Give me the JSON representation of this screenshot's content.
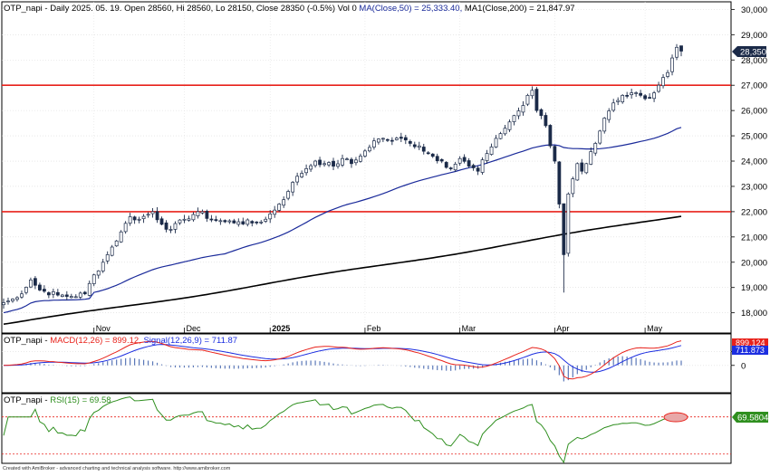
{
  "price_header": {
    "prefix": "OTP_napi - Daily 2025. 05. 19. Open 28560, Hi 28560, Lo 28150, Close 28350 (-0.5%) Vol 0 ",
    "ma50": "MA(Close,50) = 25,333.40, ",
    "ma200": "MA1(Close,200) = 21,847.97",
    "ma50_color": "#1a2a9a",
    "ma200_color": "#000000"
  },
  "macd_header": {
    "prefix": "OTP_napi - ",
    "macd": "MACD(12,26) = 899.12, ",
    "signal": "Signal(12,26,9) = 711.87",
    "macd_color": "#e8221b",
    "signal_color": "#1c2ee0"
  },
  "rsi_header": {
    "prefix": "OTP_napi - ",
    "rsi": "RSI(15) = 69.58",
    "rsi_color": "#2f8f1f"
  },
  "price_badge": "28,350",
  "macd_badge": "899.124",
  "signal_badge": "711.873",
  "rsi_badge": "69.5804",
  "footer": "Created with AmiBroker - advanced charting and technical analysis software. http://www.amibroker.com",
  "chart_data": [
    {
      "type": "candlestick",
      "ticker": "OTP_napi",
      "y_ticks": [
        18000,
        19000,
        20000,
        21000,
        22000,
        23000,
        24000,
        25000,
        26000,
        27000,
        28000,
        29000,
        30000
      ],
      "ylim": [
        17200,
        30300
      ],
      "x_labels": [
        "Nov",
        "Dec",
        "2025",
        "Feb",
        "Mar",
        "Apr",
        "May"
      ],
      "x_label_positions": [
        20,
        40,
        59,
        80,
        101,
        122,
        142
      ],
      "num_bars": 151,
      "horizontal_lines": [
        {
          "value": 27000,
          "color": "#e8221b"
        },
        {
          "value": 22000,
          "color": "#e8221b"
        }
      ],
      "up_color": "#ffffff",
      "down_color": "#1b2a48",
      "ohlc_keypoints": [
        [
          0,
          18400
        ],
        [
          3,
          18600
        ],
        [
          6,
          19300
        ],
        [
          8,
          18900
        ],
        [
          12,
          18700
        ],
        [
          15,
          18650
        ],
        [
          18,
          18750
        ],
        [
          20,
          19500
        ],
        [
          22,
          20000
        ],
        [
          24,
          20600
        ],
        [
          26,
          21200
        ],
        [
          28,
          21800
        ],
        [
          30,
          21700
        ],
        [
          33,
          22000
        ],
        [
          35,
          21500
        ],
        [
          37,
          21300
        ],
        [
          40,
          21700
        ],
        [
          43,
          22000
        ],
        [
          46,
          21700
        ],
        [
          49,
          21600
        ],
        [
          52,
          21600
        ],
        [
          55,
          21550
        ],
        [
          58,
          21700
        ],
        [
          61,
          22300
        ],
        [
          63,
          22800
        ],
        [
          65,
          23400
        ],
        [
          67,
          23700
        ],
        [
          69,
          24000
        ],
        [
          71,
          23900
        ],
        [
          73,
          23800
        ],
        [
          75,
          24100
        ],
        [
          77,
          23900
        ],
        [
          79,
          24200
        ],
        [
          80,
          24400
        ],
        [
          82,
          24800
        ],
        [
          84,
          24900
        ],
        [
          86,
          24800
        ],
        [
          88,
          24900
        ],
        [
          90,
          24700
        ],
        [
          92,
          24600
        ],
        [
          94,
          24300
        ],
        [
          97,
          24000
        ],
        [
          99,
          23700
        ],
        [
          101,
          24100
        ],
        [
          103,
          23800
        ],
        [
          105,
          23600
        ],
        [
          107,
          24300
        ],
        [
          109,
          24900
        ],
        [
          111,
          25300
        ],
        [
          113,
          25800
        ],
        [
          115,
          26200
        ],
        [
          116,
          26600
        ],
        [
          117,
          26800
        ],
        [
          118,
          26000
        ],
        [
          119,
          25800
        ],
        [
          120,
          25400
        ],
        [
          121,
          24600
        ],
        [
          122,
          24000
        ],
        [
          123,
          22300
        ],
        [
          124,
          20300
        ],
        [
          125,
          22700
        ],
        [
          126,
          23300
        ],
        [
          127,
          23900
        ],
        [
          128,
          23600
        ],
        [
          129,
          23900
        ],
        [
          131,
          24700
        ],
        [
          133,
          25700
        ],
        [
          135,
          26300
        ],
        [
          137,
          26600
        ],
        [
          139,
          26700
        ],
        [
          141,
          26600
        ],
        [
          143,
          26500
        ],
        [
          145,
          27000
        ],
        [
          147,
          27500
        ],
        [
          149,
          28500
        ],
        [
          150,
          28350
        ]
      ],
      "ma50": {
        "name": "MA(Close,50)",
        "last": 25333.4,
        "color": "#1a2a9a"
      },
      "ma200": {
        "name": "MA1(Close,200)",
        "last": 21847.97,
        "color": "#000000"
      },
      "last_bar": {
        "date": "2025. 05. 19.",
        "open": 28560,
        "high": 28560,
        "low": 28150,
        "close": 28350,
        "change_pct": -0.5,
        "volume": 0
      }
    },
    {
      "type": "line",
      "name": "MACD panel",
      "y_ticks": [
        0,
        500
      ],
      "ylim": [
        -1000,
        1150
      ],
      "series": [
        {
          "name": "MACD(12,26)",
          "color": "#e8221b",
          "last": 899.12
        },
        {
          "name": "Signal(12,26,9)",
          "color": "#1c2ee0",
          "last": 711.87
        }
      ],
      "histogram_color": "#5b78b8"
    },
    {
      "type": "line",
      "name": "RSI panel",
      "ylim": [
        20,
        95
      ],
      "reference_lines": [
        70,
        30
      ],
      "series": [
        {
          "name": "RSI(15)",
          "color": "#2f8f1f",
          "last": 69.58
        }
      ]
    }
  ]
}
